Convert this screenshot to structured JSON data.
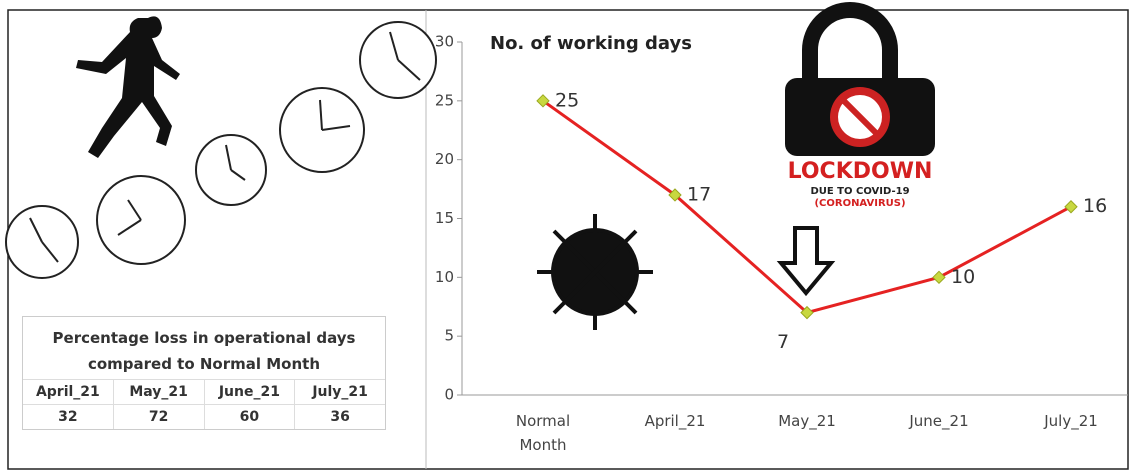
{
  "chart_data": {
    "type": "line",
    "title": "No. of working days",
    "categories": [
      "Normal Month",
      "April_21",
      "May_21",
      "June_21",
      "July_21"
    ],
    "series": [
      {
        "name": "No. of working days",
        "color": "#e52222",
        "values": [
          25,
          17,
          7,
          10,
          16
        ]
      }
    ],
    "ylim": [
      0,
      30
    ],
    "yticks": [
      0,
      5,
      10,
      15,
      20,
      25,
      30
    ],
    "grid": false,
    "annotations": [
      "LOCKDOWN",
      "DUE TO COVID-19",
      "(CORONAVIRUS)"
    ]
  },
  "table": {
    "title": "Percentage loss in operational days compared to Normal Month",
    "columns": [
      "April_21",
      "May_21",
      "June_21",
      "July_21"
    ],
    "values": [
      32,
      72,
      60,
      36
    ]
  }
}
